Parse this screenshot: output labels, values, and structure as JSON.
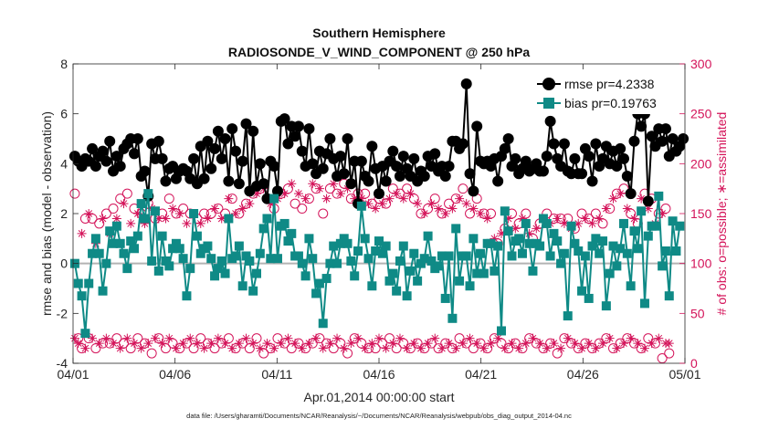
{
  "chart_data": {
    "type": "line",
    "title": "Southern Hemisphere",
    "subtitle": "RADIOSONDE_V_WIND_COMPONENT @ 250 hPa",
    "xlabel": "Apr.01,2014 00:00:00 start",
    "ylabel": "rmse and bias (model - observation)",
    "ylabel_right": "# of obs: o=possible; ∗=assimilated",
    "footer": "data file: /Users/gharamti/Documents/NCAR/Reanalysis/~/Documents/NCAR/Reanalysis/webpub/obs_diag_output_2014-04.nc",
    "xlim": [
      0,
      30
    ],
    "ylim": [
      -4,
      8
    ],
    "ylim_right": [
      0,
      300
    ],
    "x_ticks": [
      0,
      5,
      10,
      15,
      20,
      25,
      30
    ],
    "x_tick_labels": [
      "04/01",
      "04/06",
      "04/11",
      "04/16",
      "04/21",
      "04/26",
      "05/01"
    ],
    "y_ticks": [
      -4,
      -2,
      0,
      2,
      4,
      6,
      8
    ],
    "y_tick_labels": [
      "-4",
      "-2",
      "0",
      "2",
      "4",
      "6",
      "8"
    ],
    "y_right_ticks": [
      0,
      50,
      100,
      150,
      200,
      250,
      300
    ],
    "y_right_tick_labels": [
      "0",
      "50",
      "100",
      "150",
      "200",
      "250",
      "300"
    ],
    "legend": [
      "rmse pr=4.2338",
      "bias pr=0.19763"
    ],
    "legend_position": "top-right",
    "colors": {
      "rmse": "#000000",
      "bias": "#0f8a86",
      "obs": "#d4145a",
      "zero_line": "#b3b3b3"
    },
    "series": [
      {
        "name": "rmse pr=4.2338",
        "values": [
          4.3,
          4.1,
          3.9,
          4.2,
          4.1,
          4.6,
          3.9,
          4.3,
          4.5,
          4.1,
          4.9,
          3.7,
          4.3,
          3.9,
          4.6,
          4.8,
          5.0,
          4.4,
          5.0,
          3.5,
          3.7,
          2.7,
          4.8,
          4.2,
          4.9,
          4.2,
          3.3,
          3.8,
          3.9,
          3.4,
          3.7,
          3.8,
          3.7,
          3.4,
          4.2,
          3.2,
          4.7,
          3.4,
          4.9,
          3.8,
          4.6,
          5.3,
          4.2,
          5.0,
          3.3,
          5.4,
          4.5,
          3.2,
          4.1,
          5.6,
          2.9,
          5.3,
          3.1,
          4.0,
          3.2,
          2.6,
          4.1,
          3.9,
          2.9,
          5.7,
          5.8,
          4.8,
          5.5,
          5.1,
          5.5,
          4.5,
          3.9,
          5.4,
          4.0,
          3.6,
          4.5,
          3.8,
          4.4,
          5.0,
          4.2,
          3.5,
          4.3,
          3.6,
          5.0,
          3.2,
          4.1,
          2.4,
          4.1,
          3.5,
          3.3,
          4.7,
          3.8,
          2.8,
          3.9,
          3.3,
          4.1,
          4.5,
          3.9,
          3.5,
          4.3,
          3.8,
          3.5,
          4.2,
          3.3,
          3.7,
          3.5,
          4.3,
          3.9,
          4.4,
          3.7,
          3.9,
          3.5,
          3.9,
          4.9,
          4.9,
          4.6,
          4.8,
          7.2,
          3.6,
          2.9,
          5.5,
          4.1,
          4.0,
          4.1,
          3.9,
          4.2,
          3.3,
          4.3,
          4.6,
          5.0,
          3.9,
          4.2,
          3.6,
          3.8,
          4.1,
          3.7,
          3.8,
          4.0,
          3.7,
          3.7,
          4.3,
          5.7,
          4.8,
          4.2,
          3.9,
          4.8,
          3.7,
          3.6,
          4.2,
          3.6,
          3.6,
          4.6,
          4.3,
          3.3,
          4.8,
          3.9,
          4.2,
          4.7,
          4.0,
          4.5,
          3.9,
          4.6,
          4.2,
          3.5,
          2.8,
          4.9,
          6.0,
          5.5,
          6.0,
          2.5,
          5.1,
          4.7,
          5.4,
          4.9,
          5.4,
          4.3,
          5.0,
          4.5,
          4.7,
          5.0
        ]
      },
      {
        "name": "bias pr=0.19763",
        "values": [
          0.0,
          -0.8,
          -1.3,
          -2.8,
          -0.8,
          0.4,
          1.0,
          0.4,
          -1.1,
          0.0,
          1.3,
          0.8,
          1.5,
          0.8,
          0.4,
          -0.2,
          0.9,
          0.6,
          1.1,
          2.4,
          1.8,
          2.8,
          0.1,
          2.1,
          -0.3,
          1.1,
          0.1,
          -0.1,
          0.6,
          0.8,
          0.6,
          0.2,
          -1.3,
          -0.2,
          2.0,
          1.1,
          0.4,
          0.6,
          0.7,
          0.2,
          -0.5,
          -0.2,
          0.1,
          -0.4,
          1.8,
          0.2,
          0.3,
          0.7,
          -0.9,
          0.3,
          0.1,
          -1.1,
          -0.4,
          0.4,
          1.4,
          1.8,
          0.2,
          2.6,
          0.2,
          1.5,
          1.6,
          0.9,
          1.2,
          0.3,
          0.3,
          0.0,
          -0.5,
          1.0,
          0.2,
          -1.2,
          -0.8,
          -2.4,
          -0.6,
          0.0,
          0.7,
          0.0,
          0.8,
          1.0,
          0.8,
          0.1,
          -0.5,
          0.5,
          2.3,
          1.0,
          0.2,
          -0.9,
          0.5,
          0.9,
          0.4,
          0.7,
          -0.7,
          -0.4,
          -1.1,
          0.1,
          0.7,
          -1.3,
          -0.3,
          0.4,
          -0.7,
          0.0,
          0.2,
          1.1,
          0.1,
          -0.2,
          -0.1,
          0.3,
          -1.4,
          0.3,
          -2.2,
          1.4,
          -0.7,
          0.3,
          0.3,
          -0.9,
          1.0,
          -0.4,
          0.4,
          -0.4,
          0.8,
          0.8,
          -0.3,
          0.7,
          -2.7,
          2.1,
          1.3,
          0.3,
          0.9,
          1.0,
          0.4,
          1.6,
          0.8,
          -0.3,
          0.8,
          0.7,
          1.8,
          1.6,
          0.3,
          1.2,
          0.9,
          0.0,
          0.4,
          -2.1,
          1.5,
          0.8,
          0.5,
          -1.1,
          0.3,
          -1.4,
          0.7,
          1.0,
          0.4,
          0.9,
          -1.7,
          -0.4,
          0.7,
          -0.1,
          0.6,
          1.6,
          0.4,
          -0.9,
          1.3,
          0.6,
          2.1,
          -1.6,
          1.1,
          1.5,
          1.5,
          2.7,
          -0.1,
          0.5,
          -1.3,
          1.7,
          0.5,
          1.5
        ]
      },
      {
        "name": "possible",
        "values": [
          170,
          25,
          15,
          145,
          25,
          145,
          15,
          140,
          20,
          150,
          20,
          155,
          25,
          165,
          20,
          170,
          15,
          155,
          25,
          150,
          20,
          160,
          10,
          145,
          25,
          150,
          15,
          165,
          20,
          150,
          15,
          155,
          20,
          150,
          15,
          145,
          25,
          150,
          20,
          150,
          15,
          155,
          20,
          150,
          25,
          165,
          15,
          150,
          20,
          160,
          15,
          170,
          25,
          175,
          10,
          165,
          15,
          155,
          25,
          170,
          20,
          175,
          15,
          160,
          20,
          155,
          15,
          165,
          20,
          175,
          25,
          150,
          20,
          175,
          15,
          170,
          20,
          180,
          10,
          165,
          25,
          170,
          20,
          170,
          15,
          160,
          15,
          165,
          20,
          160,
          25,
          175,
          15,
          170,
          20,
          175,
          15,
          165,
          20,
          150,
          15,
          155,
          20,
          165,
          15,
          150,
          20,
          160,
          15,
          165,
          25,
          175,
          20,
          150,
          15,
          165,
          20,
          150,
          15,
          150,
          25,
          120,
          20,
          135,
          15,
          150,
          20,
          140,
          15,
          150,
          25,
          125,
          20,
          140,
          15,
          150,
          20,
          145,
          10,
          145,
          25,
          145,
          20,
          135,
          15,
          150,
          20,
          145,
          15,
          150,
          20,
          140,
          25,
          155,
          15,
          170,
          20,
          175,
          25,
          150,
          20,
          140,
          15,
          170,
          25,
          165,
          20,
          150,
          5,
          155,
          10
        ]
      },
      {
        "name": "assimilated",
        "values": [
          25,
          20,
          130,
          15,
          150,
          25,
          120,
          20,
          145,
          25,
          130,
          20,
          145,
          15,
          160,
          25,
          140,
          20,
          150,
          15,
          140,
          20,
          155,
          25,
          145,
          20,
          145,
          25,
          155,
          15,
          150,
          20,
          140,
          25,
          150,
          20,
          140,
          15,
          145,
          20,
          155,
          25,
          145,
          20,
          165,
          15,
          150,
          20,
          155,
          25,
          160,
          20,
          170,
          15,
          175,
          20,
          160,
          15,
          165,
          20,
          170,
          25,
          180,
          20,
          170,
          15,
          165,
          20,
          180,
          25,
          175,
          15,
          165,
          20,
          180,
          25,
          170,
          15,
          175,
          20,
          165,
          25,
          165,
          15,
          160,
          20,
          155,
          25,
          160,
          15,
          165,
          20,
          170,
          25,
          165,
          15,
          170,
          20,
          160,
          15,
          150,
          20,
          160,
          25,
          155,
          15,
          150,
          20,
          155,
          15,
          165,
          20,
          160,
          25,
          155,
          20,
          150,
          15,
          145,
          20,
          125,
          25,
          130,
          15,
          145,
          20,
          135,
          15,
          145,
          20,
          130,
          25,
          135,
          20,
          145,
          15,
          140,
          20,
          145,
          15,
          140,
          25,
          135,
          20,
          140,
          15,
          145,
          20,
          140,
          15,
          145,
          20,
          155,
          25,
          165,
          15,
          170,
          20,
          155,
          25,
          145,
          20,
          165,
          15,
          155,
          20,
          140,
          25,
          150,
          20,
          20
        ]
      }
    ]
  }
}
